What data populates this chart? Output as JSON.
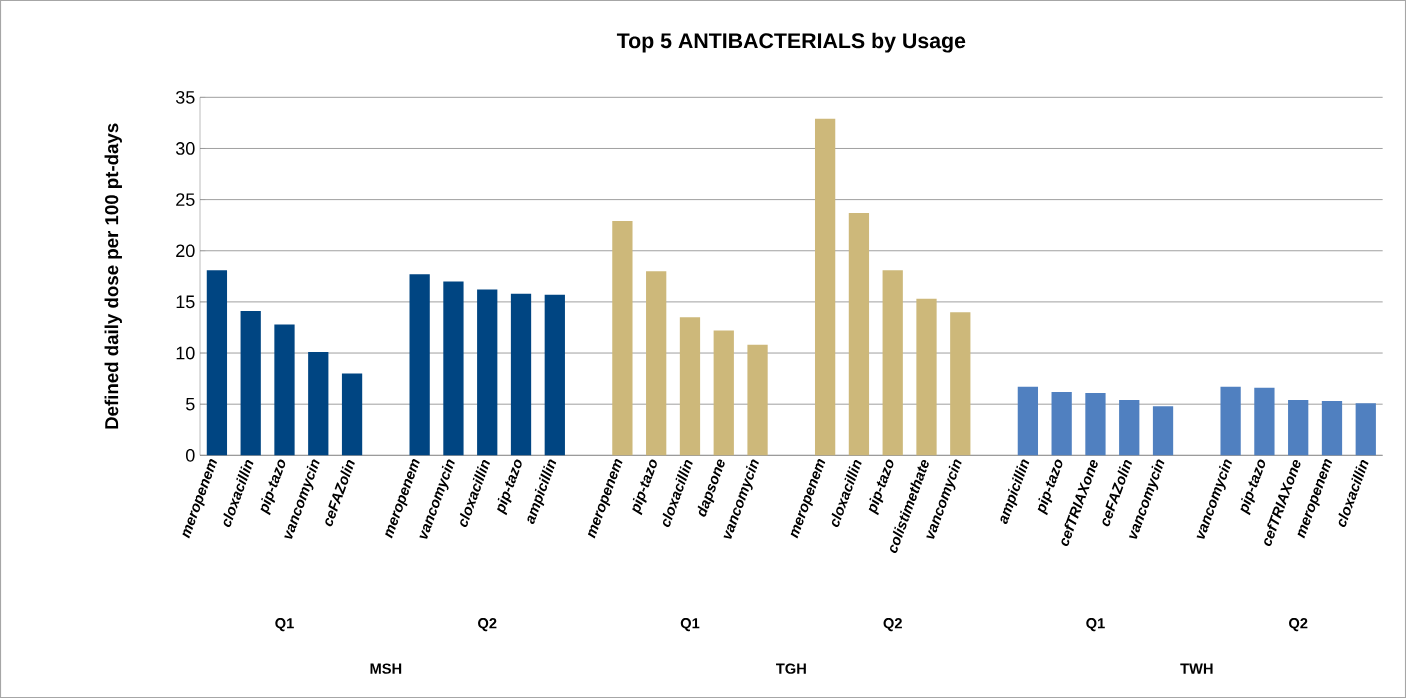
{
  "chart_data": {
    "type": "bar",
    "title": "Top 5 ANTIBACTERIALS by Usage",
    "ylabel": "Defined daily dose per 100 pt-days",
    "categories": [
      "meropenem",
      "cloxacillin",
      "pip-tazo",
      "vancomycin",
      "ceFAZolin",
      null,
      "meropenem",
      "vancomycin",
      "cloxacillin",
      "pip-tazo",
      "ampicillin",
      null,
      "meropenem",
      "pip-tazo",
      "cloxacillin",
      "dapsone",
      "vancomycin",
      null,
      "meropenem",
      "cloxacillin",
      "pip-tazo",
      "colistimethate",
      "vancomycin",
      null,
      "ampicillin",
      "pip-tazo",
      "cefTRIAXone",
      "ceFAZolin",
      "vancomycin",
      null,
      "vancomycin",
      "pip-tazo",
      "cefTRIAXone",
      "meropenem",
      "cloxacillin"
    ],
    "values": [
      18.1,
      14.1,
      12.8,
      10.1,
      8.0,
      null,
      17.7,
      17.0,
      16.2,
      15.8,
      15.7,
      null,
      22.9,
      18.0,
      13.5,
      12.2,
      10.8,
      null,
      32.9,
      23.7,
      18.1,
      15.3,
      14.0,
      null,
      6.7,
      6.2,
      6.1,
      5.4,
      4.8,
      null,
      6.7,
      6.6,
      5.4,
      5.3,
      5.1
    ],
    "colors": [
      "#004582",
      "#004582",
      "#004582",
      "#004582",
      "#004582",
      null,
      "#004582",
      "#004582",
      "#004582",
      "#004582",
      "#004582",
      null,
      "#cdb87a",
      "#cdb87a",
      "#cdb87a",
      "#cdb87a",
      "#cdb87a",
      null,
      "#cdb87a",
      "#cdb87a",
      "#cdb87a",
      "#cdb87a",
      "#cdb87a",
      null,
      "#5080c0",
      "#5080c0",
      "#5080c0",
      "#5080c0",
      "#5080c0",
      null,
      "#5080c0",
      "#5080c0",
      "#5080c0",
      "#5080c0",
      "#5080c0"
    ],
    "ylim": [
      0,
      35
    ],
    "yticks": [
      0,
      5,
      10,
      15,
      20,
      25,
      30,
      35
    ],
    "grid": "y",
    "annotations": [
      "Q1",
      "Q2",
      "Q1",
      "Q2",
      "Q1",
      "Q2",
      "MSH",
      "TGH",
      "TWH"
    ]
  }
}
